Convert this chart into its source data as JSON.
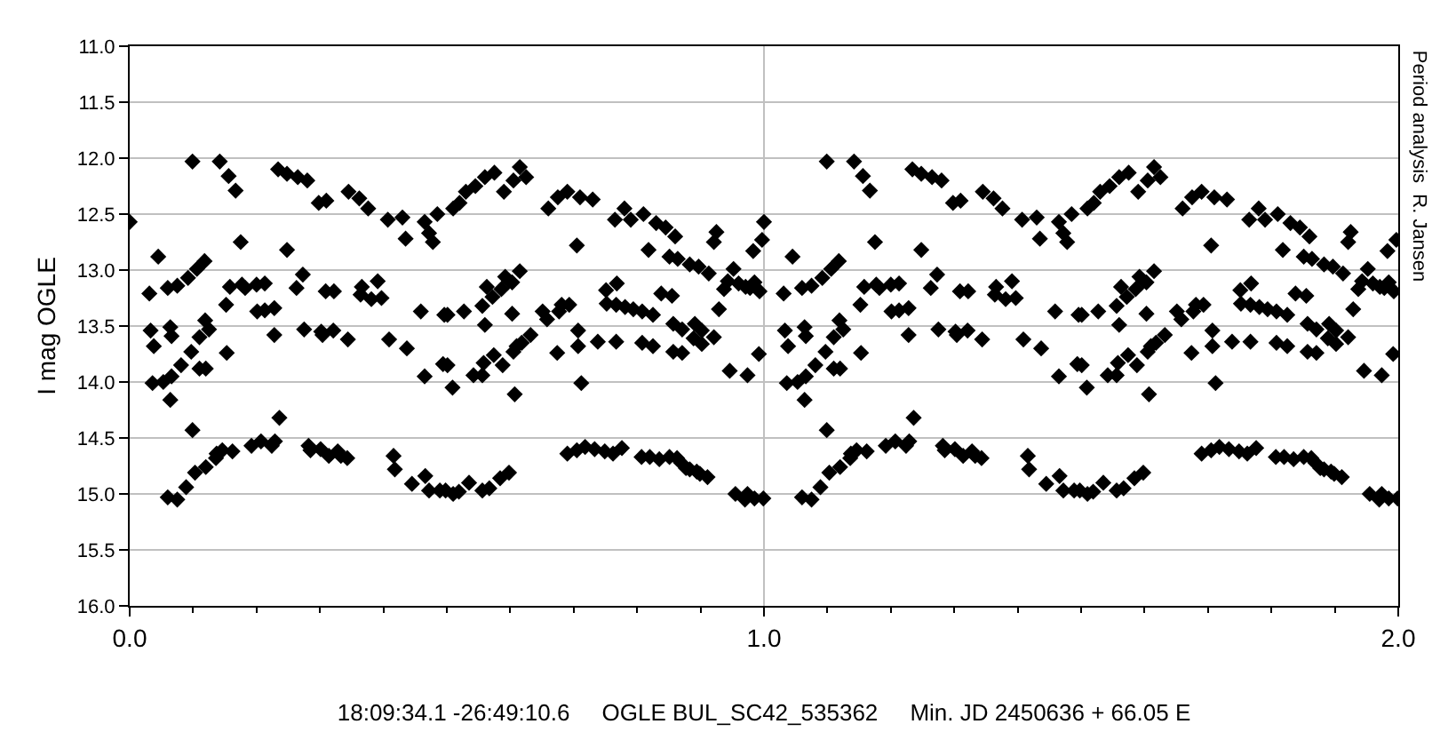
{
  "chart_data": {
    "type": "scatter",
    "xlabel": "18:09:34.1 -26:49:10.6     OGLE BUL_SC42_535362     Min. JD 2450636 + 66.05 E",
    "ylabel": "I mag OGLE",
    "annotations": [
      "Period analysis  R. Jansen"
    ],
    "color": "#000000",
    "marker": "diamond",
    "grid": true,
    "xlim": [
      0,
      2
    ],
    "xticks": [
      {
        "value": 0,
        "label": "0.0"
      },
      {
        "value": 1,
        "label": "1.0"
      },
      {
        "value": 2,
        "label": "2.0"
      }
    ],
    "ylim": [
      16,
      11
    ],
    "yticks": [
      {
        "value": 11,
        "label": "11.0"
      },
      {
        "value": 11.5,
        "label": "11.5"
      },
      {
        "value": 12,
        "label": "12.0"
      },
      {
        "value": 12.5,
        "label": "12.5"
      },
      {
        "value": 13,
        "label": "13.0"
      },
      {
        "value": 13.5,
        "label": "13.5"
      },
      {
        "value": 14,
        "label": "14.0"
      },
      {
        "value": 14.5,
        "label": "14.5"
      },
      {
        "value": 15,
        "label": "15.0"
      },
      {
        "value": 15.5,
        "label": "15.5"
      },
      {
        "value": 16,
        "label": "16.0"
      }
    ],
    "x": [
      0.0,
      0.031,
      0.033,
      0.036,
      0.038,
      0.045,
      0.053,
      0.06,
      0.06,
      0.064,
      0.064,
      0.066,
      0.066,
      0.075,
      0.075,
      0.081,
      0.089,
      0.092,
      0.097,
      0.099,
      0.099,
      0.103,
      0.106,
      0.11,
      0.11,
      0.118,
      0.119,
      0.12,
      0.12,
      0.125,
      0.136,
      0.137,
      0.142,
      0.146,
      0.152,
      0.153,
      0.156,
      0.158,
      0.162,
      0.167,
      0.175,
      0.177,
      0.182,
      0.192,
      0.2,
      0.201,
      0.207,
      0.213,
      0.213,
      0.224,
      0.228,
      0.228,
      0.229,
      0.234,
      0.236,
      0.248,
      0.248,
      0.263,
      0.265,
      0.273,
      0.275,
      0.28,
      0.282,
      0.285,
      0.298,
      0.301,
      0.302,
      0.304,
      0.309,
      0.31,
      0.314,
      0.321,
      0.322,
      0.328,
      0.333,
      0.343,
      0.344,
      0.345,
      0.362,
      0.364,
      0.366,
      0.376,
      0.381,
      0.391,
      0.397,
      0.407,
      0.409,
      0.416,
      0.418,
      0.43,
      0.435,
      0.437,
      0.445,
      0.459,
      0.465,
      0.465,
      0.466,
      0.472,
      0.472,
      0.478,
      0.485,
      0.489,
      0.494,
      0.496,
      0.498,
      0.501,
      0.501,
      0.509,
      0.51,
      0.51,
      0.519,
      0.52,
      0.527,
      0.53,
      0.535,
      0.542,
      0.545,
      0.556,
      0.556,
      0.556,
      0.558,
      0.56,
      0.56,
      0.563,
      0.567,
      0.572,
      0.574,
      0.575,
      0.584,
      0.586,
      0.588,
      0.59,
      0.592,
      0.598,
      0.598,
      0.603,
      0.603,
      0.605,
      0.605,
      0.607,
      0.61,
      0.615,
      0.615,
      0.618,
      0.625,
      0.632,
      0.651,
      0.658,
      0.66,
      0.674,
      0.675,
      0.677,
      0.681,
      0.69,
      0.69,
      0.693,
      0.705,
      0.705,
      0.707,
      0.707,
      0.71,
      0.712,
      0.718,
      0.73,
      0.733,
      0.738,
      0.749,
      0.751,
      0.752,
      0.762,
      0.765,
      0.767,
      0.767,
      0.768,
      0.776,
      0.78,
      0.781,
      0.79,
      0.794,
      0.807,
      0.808,
      0.808,
      0.81,
      0.818,
      0.82,
      0.825,
      0.825,
      0.83,
      0.835,
      0.838,
      0.845,
      0.851,
      0.851,
      0.855,
      0.857,
      0.857,
      0.86,
      0.863,
      0.864,
      0.869,
      0.871,
      0.871,
      0.877,
      0.883,
      0.883,
      0.889,
      0.891,
      0.894,
      0.897,
      0.899,
      0.902,
      0.902,
      0.911,
      0.913,
      0.921,
      0.921,
      0.925,
      0.929,
      0.937,
      0.943,
      0.946,
      0.952,
      0.955,
      0.96,
      0.97,
      0.971,
      0.974,
      0.974,
      0.978,
      0.983,
      0.985,
      0.985,
      0.992,
      0.993,
      0.997,
      0.999,
      1.0,
      1.031,
      1.033,
      1.036,
      1.038,
      1.045,
      1.053,
      1.06,
      1.06,
      1.064,
      1.064,
      1.066,
      1.066,
      1.075,
      1.075,
      1.081,
      1.089,
      1.092,
      1.097,
      1.099,
      1.099,
      1.103,
      1.106,
      1.11,
      1.11,
      1.118,
      1.119,
      1.12,
      1.12,
      1.125,
      1.136,
      1.137,
      1.142,
      1.146,
      1.152,
      1.153,
      1.156,
      1.158,
      1.162,
      1.167,
      1.175,
      1.177,
      1.182,
      1.192,
      1.2,
      1.201,
      1.207,
      1.213,
      1.213,
      1.224,
      1.228,
      1.228,
      1.229,
      1.234,
      1.236,
      1.248,
      1.248,
      1.263,
      1.265,
      1.273,
      1.275,
      1.28,
      1.282,
      1.285,
      1.298,
      1.301,
      1.302,
      1.304,
      1.309,
      1.31,
      1.314,
      1.321,
      1.322,
      1.328,
      1.333,
      1.343,
      1.344,
      1.345,
      1.362,
      1.364,
      1.366,
      1.376,
      1.381,
      1.391,
      1.397,
      1.407,
      1.409,
      1.416,
      1.418,
      1.43,
      1.435,
      1.437,
      1.445,
      1.459,
      1.465,
      1.465,
      1.466,
      1.472,
      1.472,
      1.478,
      1.485,
      1.489,
      1.494,
      1.496,
      1.498,
      1.501,
      1.501,
      1.509,
      1.51,
      1.51,
      1.519,
      1.52,
      1.527,
      1.53,
      1.535,
      1.542,
      1.545,
      1.556,
      1.556,
      1.556,
      1.558,
      1.56,
      1.56,
      1.563,
      1.567,
      1.572,
      1.574,
      1.575,
      1.584,
      1.586,
      1.588,
      1.59,
      1.592,
      1.598,
      1.598,
      1.603,
      1.603,
      1.605,
      1.605,
      1.607,
      1.61,
      1.615,
      1.615,
      1.618,
      1.625,
      1.632,
      1.651,
      1.658,
      1.66,
      1.674,
      1.675,
      1.677,
      1.681,
      1.69,
      1.69,
      1.693,
      1.705,
      1.705,
      1.707,
      1.707,
      1.71,
      1.712,
      1.718,
      1.73,
      1.733,
      1.738,
      1.749,
      1.751,
      1.752,
      1.762,
      1.765,
      1.767,
      1.767,
      1.768,
      1.776,
      1.78,
      1.781,
      1.79,
      1.794,
      1.807,
      1.808,
      1.808,
      1.81,
      1.818,
      1.82,
      1.825,
      1.825,
      1.83,
      1.835,
      1.838,
      1.845,
      1.851,
      1.851,
      1.855,
      1.857,
      1.857,
      1.86,
      1.863,
      1.864,
      1.869,
      1.871,
      1.871,
      1.877,
      1.883,
      1.883,
      1.889,
      1.891,
      1.894,
      1.897,
      1.899,
      1.902,
      1.902,
      1.911,
      1.913,
      1.921,
      1.921,
      1.925,
      1.929,
      1.937,
      1.943,
      1.946,
      1.952,
      1.955,
      1.96,
      1.97,
      1.971,
      1.974,
      1.974,
      1.978,
      1.983,
      1.985,
      1.985,
      1.992,
      1.993,
      1.997,
      1.999
    ],
    "values": [
      12.57,
      13.21,
      13.54,
      14.01,
      13.68,
      12.88,
      14.0,
      15.03,
      13.16,
      13.51,
      14.16,
      13.59,
      13.95,
      15.05,
      13.14,
      13.85,
      14.94,
      13.07,
      13.73,
      12.03,
      14.43,
      14.81,
      12.99,
      13.6,
      13.88,
      12.92,
      13.45,
      14.76,
      13.88,
      13.53,
      14.68,
      14.64,
      12.03,
      14.61,
      13.31,
      13.74,
      12.16,
      13.15,
      14.62,
      12.29,
      12.75,
      13.13,
      13.16,
      14.57,
      13.13,
      13.37,
      14.53,
      13.12,
      13.36,
      14.57,
      13.34,
      13.58,
      14.53,
      12.1,
      14.32,
      12.14,
      12.82,
      13.16,
      12.17,
      13.04,
      13.53,
      12.2,
      14.57,
      14.61,
      12.4,
      14.6,
      13.55,
      13.58,
      13.19,
      12.38,
      14.66,
      13.54,
      13.19,
      14.62,
      14.66,
      14.68,
      13.62,
      12.3,
      12.36,
      13.22,
      13.15,
      12.45,
      13.26,
      13.1,
      13.25,
      12.55,
      13.62,
      14.66,
      14.78,
      12.53,
      12.72,
      13.7,
      14.91,
      13.37,
      13.95,
      12.57,
      14.84,
      14.97,
      12.67,
      12.75,
      12.5,
      14.97,
      13.84,
      13.4,
      14.97,
      13.4,
      13.85,
      14.05,
      15.0,
      12.45,
      14.98,
      12.4,
      13.37,
      12.3,
      14.9,
      13.94,
      12.25,
      13.94,
      14.97,
      13.32,
      13.83,
      13.49,
      12.17,
      13.15,
      14.95,
      13.24,
      13.76,
      12.13,
      14.86,
      13.17,
      13.85,
      12.3,
      13.06,
      13.1,
      14.81,
      13.11,
      13.39,
      13.73,
      12.2,
      14.11,
      13.68,
      13.01,
      12.08,
      13.65,
      12.17,
      13.58,
      13.37,
      13.44,
      12.45,
      13.74,
      12.35,
      13.37,
      13.31,
      14.64,
      12.3,
      13.31,
      12.78,
      14.61,
      13.54,
      13.68,
      12.35,
      14.01,
      14.58,
      12.37,
      14.6,
      13.64,
      14.62,
      13.18,
      13.3,
      14.64,
      12.55,
      13.31,
      13.64,
      13.12,
      14.59,
      12.45,
      13.33,
      12.55,
      13.35,
      14.67,
      13.37,
      13.65,
      12.5,
      12.82,
      14.67,
      13.4,
      13.68,
      12.58,
      14.69,
      13.21,
      12.62,
      14.67,
      12.88,
      13.23,
      13.48,
      13.73,
      12.7,
      14.68,
      12.9,
      14.72,
      13.53,
      13.74,
      14.77,
      14.78,
      12.95,
      13.61,
      13.48,
      14.8,
      12.97,
      14.82,
      13.54,
      13.66,
      14.85,
      13.03,
      12.75,
      13.6,
      12.66,
      13.35,
      13.17,
      13.1,
      13.9,
      12.99,
      15.0,
      13.12,
      15.05,
      13.15,
      15.0,
      13.94,
      13.16,
      12.83,
      13.11,
      15.04,
      13.75,
      13.19,
      12.73,
      15.04,
      12.57,
      13.21,
      13.54,
      14.01,
      13.68,
      12.88,
      14.0,
      15.03,
      13.16,
      13.51,
      14.16,
      13.59,
      13.95,
      15.05,
      13.14,
      13.85,
      14.94,
      13.07,
      13.73,
      12.03,
      14.43,
      14.81,
      12.99,
      13.6,
      13.88,
      12.92,
      13.45,
      14.76,
      13.88,
      13.53,
      14.68,
      14.64,
      12.03,
      14.61,
      13.31,
      13.74,
      12.16,
      13.15,
      14.62,
      12.29,
      12.75,
      13.13,
      13.16,
      14.57,
      13.13,
      13.37,
      14.53,
      13.12,
      13.36,
      14.57,
      13.34,
      13.58,
      14.53,
      12.1,
      14.32,
      12.14,
      12.82,
      13.16,
      12.17,
      13.04,
      13.53,
      12.2,
      14.57,
      14.61,
      12.4,
      14.6,
      13.55,
      13.58,
      13.19,
      12.38,
      14.66,
      13.54,
      13.19,
      14.62,
      14.66,
      14.68,
      13.62,
      12.3,
      12.36,
      13.22,
      13.15,
      12.45,
      13.26,
      13.1,
      13.25,
      12.55,
      13.62,
      14.66,
      14.78,
      12.53,
      12.72,
      13.7,
      14.91,
      13.37,
      13.95,
      12.57,
      14.84,
      14.97,
      12.67,
      12.75,
      12.5,
      14.97,
      13.84,
      13.4,
      14.97,
      13.4,
      13.85,
      14.05,
      15.0,
      12.45,
      14.98,
      12.4,
      13.37,
      12.3,
      14.9,
      13.94,
      12.25,
      13.94,
      14.97,
      13.32,
      13.83,
      13.49,
      12.17,
      13.15,
      14.95,
      13.24,
      13.76,
      12.13,
      14.86,
      13.17,
      13.85,
      12.3,
      13.06,
      13.1,
      14.81,
      13.11,
      13.39,
      13.73,
      12.2,
      14.11,
      13.68,
      13.01,
      12.08,
      13.65,
      12.17,
      13.58,
      13.37,
      13.44,
      12.45,
      13.74,
      12.35,
      13.37,
      13.31,
      14.64,
      12.3,
      13.31,
      12.78,
      14.61,
      13.54,
      13.68,
      12.35,
      14.01,
      14.58,
      12.37,
      14.6,
      13.64,
      14.62,
      13.18,
      13.3,
      14.64,
      12.55,
      13.31,
      13.64,
      13.12,
      14.59,
      12.45,
      13.33,
      12.55,
      13.35,
      14.67,
      13.37,
      13.65,
      12.5,
      12.82,
      14.67,
      13.4,
      13.68,
      12.58,
      14.69,
      13.21,
      12.62,
      14.67,
      12.88,
      13.23,
      13.48,
      13.73,
      12.7,
      14.68,
      12.9,
      14.72,
      13.53,
      13.74,
      14.77,
      14.78,
      12.95,
      13.61,
      13.48,
      14.8,
      12.97,
      14.82,
      13.54,
      13.66,
      14.85,
      13.03,
      12.75,
      13.6,
      12.66,
      13.35,
      13.17,
      13.1,
      13.9,
      12.99,
      15.0,
      13.12,
      15.05,
      13.15,
      15.0,
      13.94,
      13.16,
      12.83,
      13.11,
      15.04,
      13.75,
      13.19,
      12.73,
      15.04
    ]
  }
}
